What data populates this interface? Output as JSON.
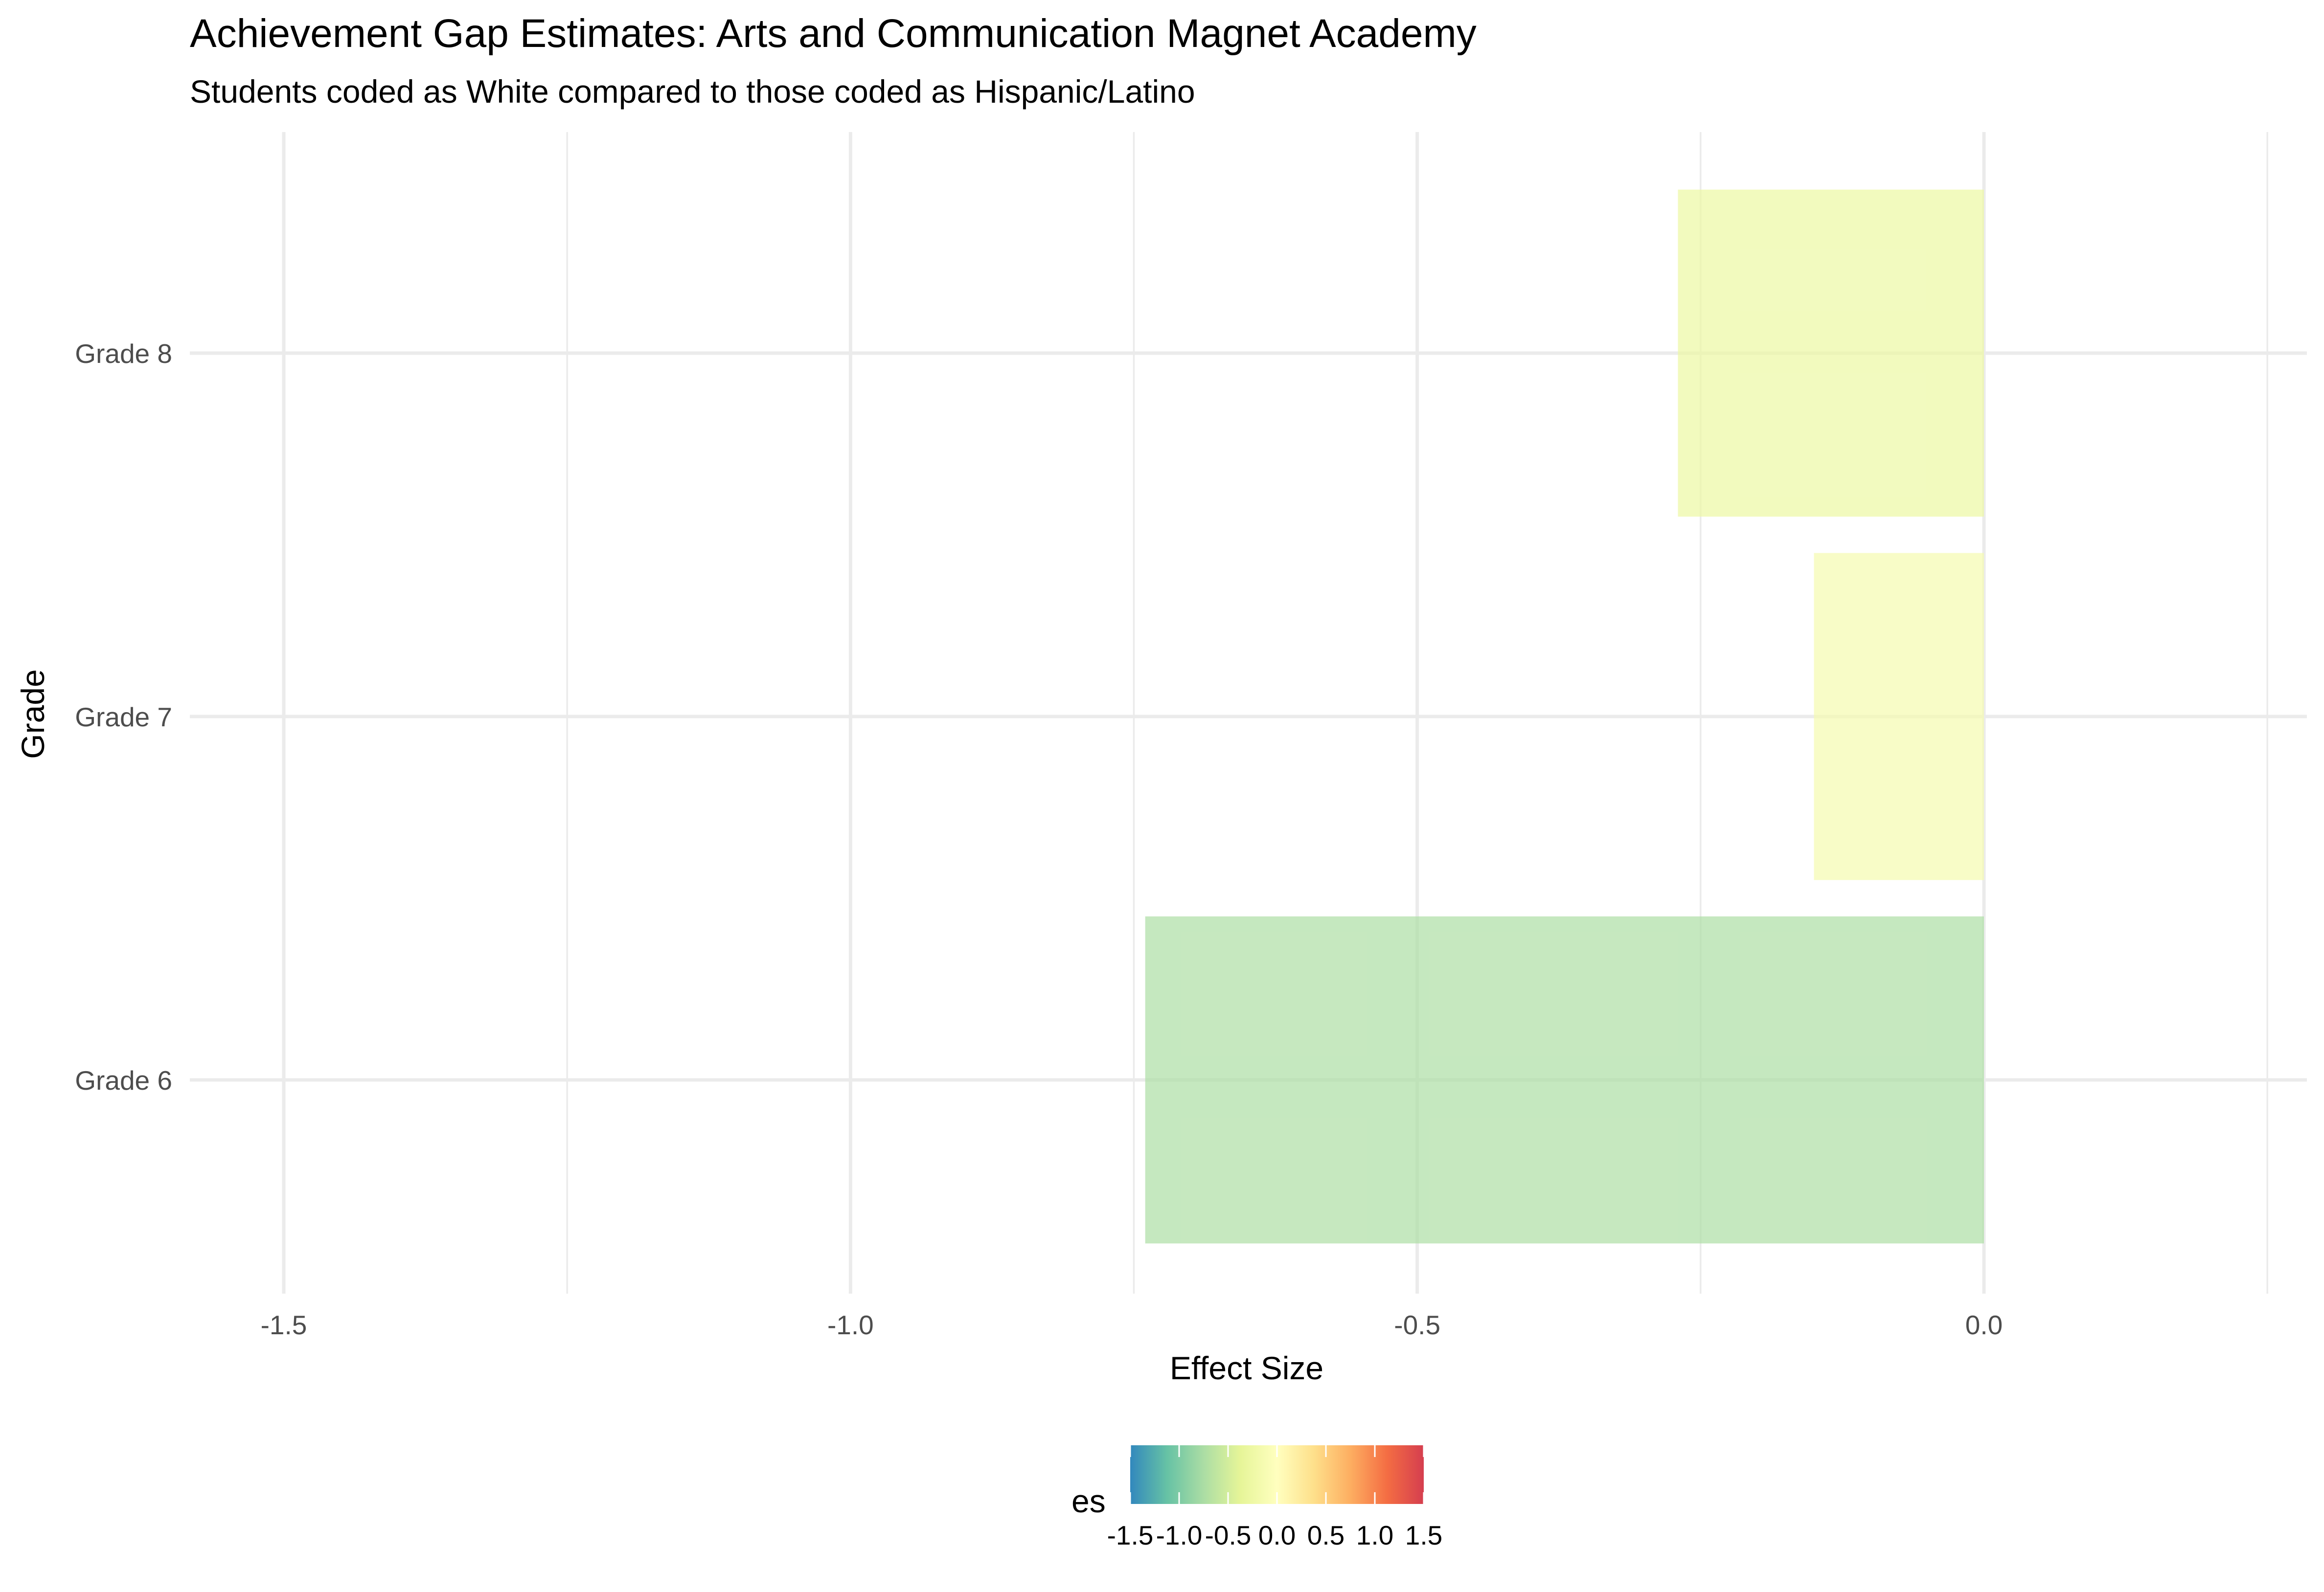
{
  "chart_data": {
    "type": "bar",
    "orientation": "horizontal",
    "title": "Achievement Gap Estimates: Arts and Communication Magnet Academy",
    "subtitle": "Students coded as White compared to those coded as Hispanic/Latino",
    "xlabel": "Effect Size",
    "ylabel": "Grade",
    "categories": [
      "Grade 6",
      "Grade 7",
      "Grade 8"
    ],
    "values": [
      -0.74,
      -0.15,
      -0.27
    ],
    "xlim": [
      -1.5,
      0.25
    ],
    "x_ticks": [
      -1.5,
      -1.0,
      -0.5,
      0.0
    ],
    "x_tick_labels": [
      "-1.5",
      "-1.0",
      "-0.5",
      "0.0"
    ],
    "grid": true,
    "legend": {
      "title": "es",
      "position": "bottom",
      "type": "colorbar",
      "range": [
        -1.5,
        1.5
      ],
      "ticks": [
        -1.5,
        -1.0,
        -0.5,
        0.0,
        0.5,
        1.0,
        1.5
      ],
      "tick_labels": [
        "-1.5",
        "-1.0",
        "-0.5",
        "0.0",
        "0.5",
        "1.0",
        "1.5"
      ],
      "palette": [
        "#3288BD",
        "#66C2A5",
        "#ABDDA4",
        "#E6F598",
        "#FFFFBF",
        "#FEE08B",
        "#FDAE61",
        "#F46D43",
        "#D53E4F"
      ]
    },
    "colors": {
      "grid": "#EBEBEB",
      "text": "#000000",
      "tick_text": "#4D4D4D",
      "bar_opacity": 0.7
    }
  }
}
